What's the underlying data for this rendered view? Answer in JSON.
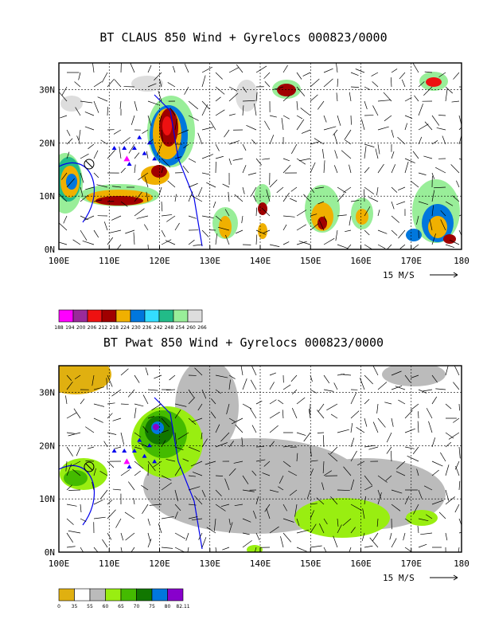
{
  "chart_data": [
    {
      "type": "heatmap",
      "title": "BT CLAUS 850 Wind + Gyrelocs 000823/0000",
      "x_ticks": [
        "100E",
        "110E",
        "120E",
        "130E",
        "140E",
        "150E",
        "160E",
        "170E",
        "180"
      ],
      "y_ticks": [
        "0N",
        "10N",
        "20N",
        "30N"
      ],
      "xlim": [
        100,
        180
      ],
      "ylim": [
        0,
        35
      ],
      "grid": true,
      "vector_scale_label": "15 M/S",
      "colorbar": {
        "labels": [
          "188",
          "194",
          "200",
          "206",
          "212",
          "218",
          "224",
          "230",
          "236",
          "242",
          "248",
          "254",
          "260",
          "266"
        ],
        "colors": [
          "#ff00ff",
          "#9a2a9a",
          "#ee1111",
          "#a00000",
          "#f0b000",
          "#0077dd",
          "#33ddff",
          "#22bb88",
          "#99ee99",
          "#dddddd"
        ]
      }
    },
    {
      "type": "heatmap",
      "title": "BT Pwat 850 Wind + Gyrelocs 000823/0000",
      "x_ticks": [
        "100E",
        "110E",
        "120E",
        "130E",
        "140E",
        "150E",
        "160E",
        "170E",
        "180"
      ],
      "y_ticks": [
        "0N",
        "10N",
        "20N",
        "30N"
      ],
      "xlim": [
        100,
        180
      ],
      "ylim": [
        0,
        35
      ],
      "grid": true,
      "vector_scale_label": "15 M/S",
      "colorbar": {
        "labels": [
          "0",
          "35",
          "55",
          "60",
          "65",
          "70",
          "75",
          "80",
          "82.11"
        ],
        "colors": [
          "#e0b010",
          "#ffffff",
          "#bbbbbb",
          "#99ee11",
          "#44bb00",
          "#117700",
          "#0077dd",
          "#8800cc"
        ]
      }
    }
  ]
}
